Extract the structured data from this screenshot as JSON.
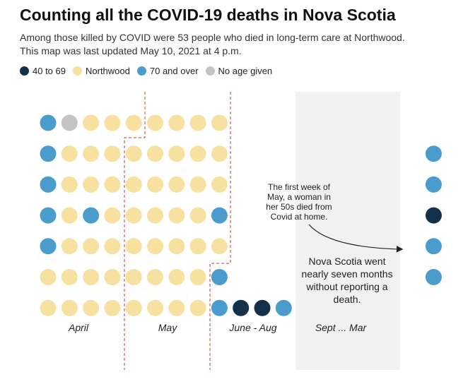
{
  "header": {
    "title": "Counting all the COVID-19 deaths in Nova Scotia",
    "subtitle_line1": "Among those killed by COVID were 53 people who died in long-term care at Northwood.",
    "subtitle_line2": "This map was last updated May 10, 2021 at 4 p.m."
  },
  "legend": [
    {
      "label": "40 to 69",
      "color": "#14304a"
    },
    {
      "label": "Northwood",
      "color": "#f7e1a0"
    },
    {
      "label": "70 and over",
      "color": "#4a9ccc"
    },
    {
      "label": "No age given",
      "color": "#c4c4c4"
    }
  ],
  "chart_data": {
    "type": "dot-grid",
    "colors": {
      "40-69": "#14304a",
      "northwood": "#f7e1a0",
      "70plus": "#4a9ccc",
      "unknown": "#c4c4c4"
    },
    "columns": [
      {
        "col": 0,
        "rows": [
          "70plus",
          "70plus",
          "70plus",
          "70plus",
          "70plus",
          "northwood",
          "northwood"
        ]
      },
      {
        "col": 1,
        "rows": [
          "unknown",
          "northwood",
          "northwood",
          "northwood",
          "northwood",
          "northwood",
          "northwood"
        ]
      },
      {
        "col": 2,
        "rows": [
          "northwood",
          "northwood",
          "northwood",
          "70plus",
          "northwood",
          "northwood",
          "northwood"
        ]
      },
      {
        "col": 3,
        "rows": [
          "northwood",
          "northwood",
          "northwood",
          "northwood",
          "northwood",
          "northwood",
          "northwood"
        ]
      },
      {
        "col": 4,
        "rows": [
          "northwood",
          "northwood",
          "northwood",
          "northwood",
          "northwood",
          "northwood",
          "northwood"
        ]
      },
      {
        "col": 5,
        "rows": [
          "northwood",
          "northwood",
          "northwood",
          "northwood",
          "northwood",
          "northwood",
          "northwood"
        ]
      },
      {
        "col": 6,
        "rows": [
          "northwood",
          "northwood",
          "northwood",
          "northwood",
          "northwood",
          "northwood",
          "northwood"
        ]
      },
      {
        "col": 7,
        "rows": [
          "northwood",
          "northwood",
          "northwood",
          "northwood",
          "northwood",
          "northwood",
          "northwood"
        ]
      },
      {
        "col": 8,
        "rows": [
          "northwood",
          "northwood",
          "northwood",
          "70plus",
          "northwood",
          "70plus",
          "70plus"
        ]
      },
      {
        "col": 9,
        "rows": [
          null,
          null,
          null,
          null,
          null,
          null,
          "40-69"
        ]
      },
      {
        "col": 10,
        "rows": [
          null,
          null,
          null,
          null,
          null,
          null,
          "40-69"
        ]
      },
      {
        "col": 11,
        "rows": [
          null,
          null,
          null,
          null,
          null,
          null,
          "70plus"
        ]
      },
      {
        "col": 17,
        "rows": [
          null,
          null,
          null,
          null,
          null,
          null,
          null
        ]
      },
      {
        "col": 18,
        "rows": [
          null,
          "70plus",
          "70plus",
          "40-69",
          "70plus",
          "70plus",
          null
        ]
      }
    ],
    "period_labels": [
      "April",
      "May",
      "June - Aug",
      "Sept ... Mar"
    ],
    "annotations": {
      "note_woman": [
        "The first week of",
        "May, a woman in",
        "her 50s died from",
        "Covid at home."
      ],
      "gap_note": [
        "Nova Scotia went",
        "nearly seven months",
        "without reporting a",
        "death."
      ]
    }
  }
}
